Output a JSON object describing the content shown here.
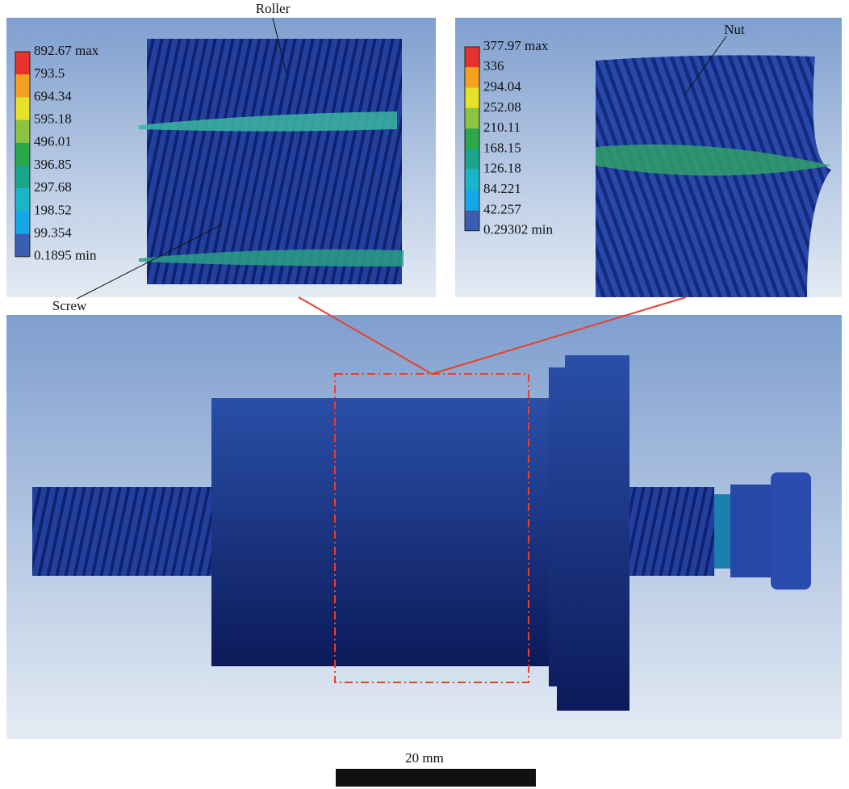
{
  "legend_left": {
    "labels": [
      "892.67 max",
      "793.5",
      "694.34",
      "595.18",
      "496.01",
      "396.85",
      "297.68",
      "198.52",
      "99.354",
      "0.1895 min"
    ]
  },
  "legend_right": {
    "labels": [
      "377.97 max",
      "336",
      "294.04",
      "252.08",
      "210.11",
      "168.15",
      "126.18",
      "84.221",
      "42.257",
      "0.29302 min"
    ]
  },
  "callouts": {
    "roller": "Roller",
    "screw": "Screw",
    "nut": "Nut"
  },
  "scale_bar": {
    "label": "20 mm"
  }
}
